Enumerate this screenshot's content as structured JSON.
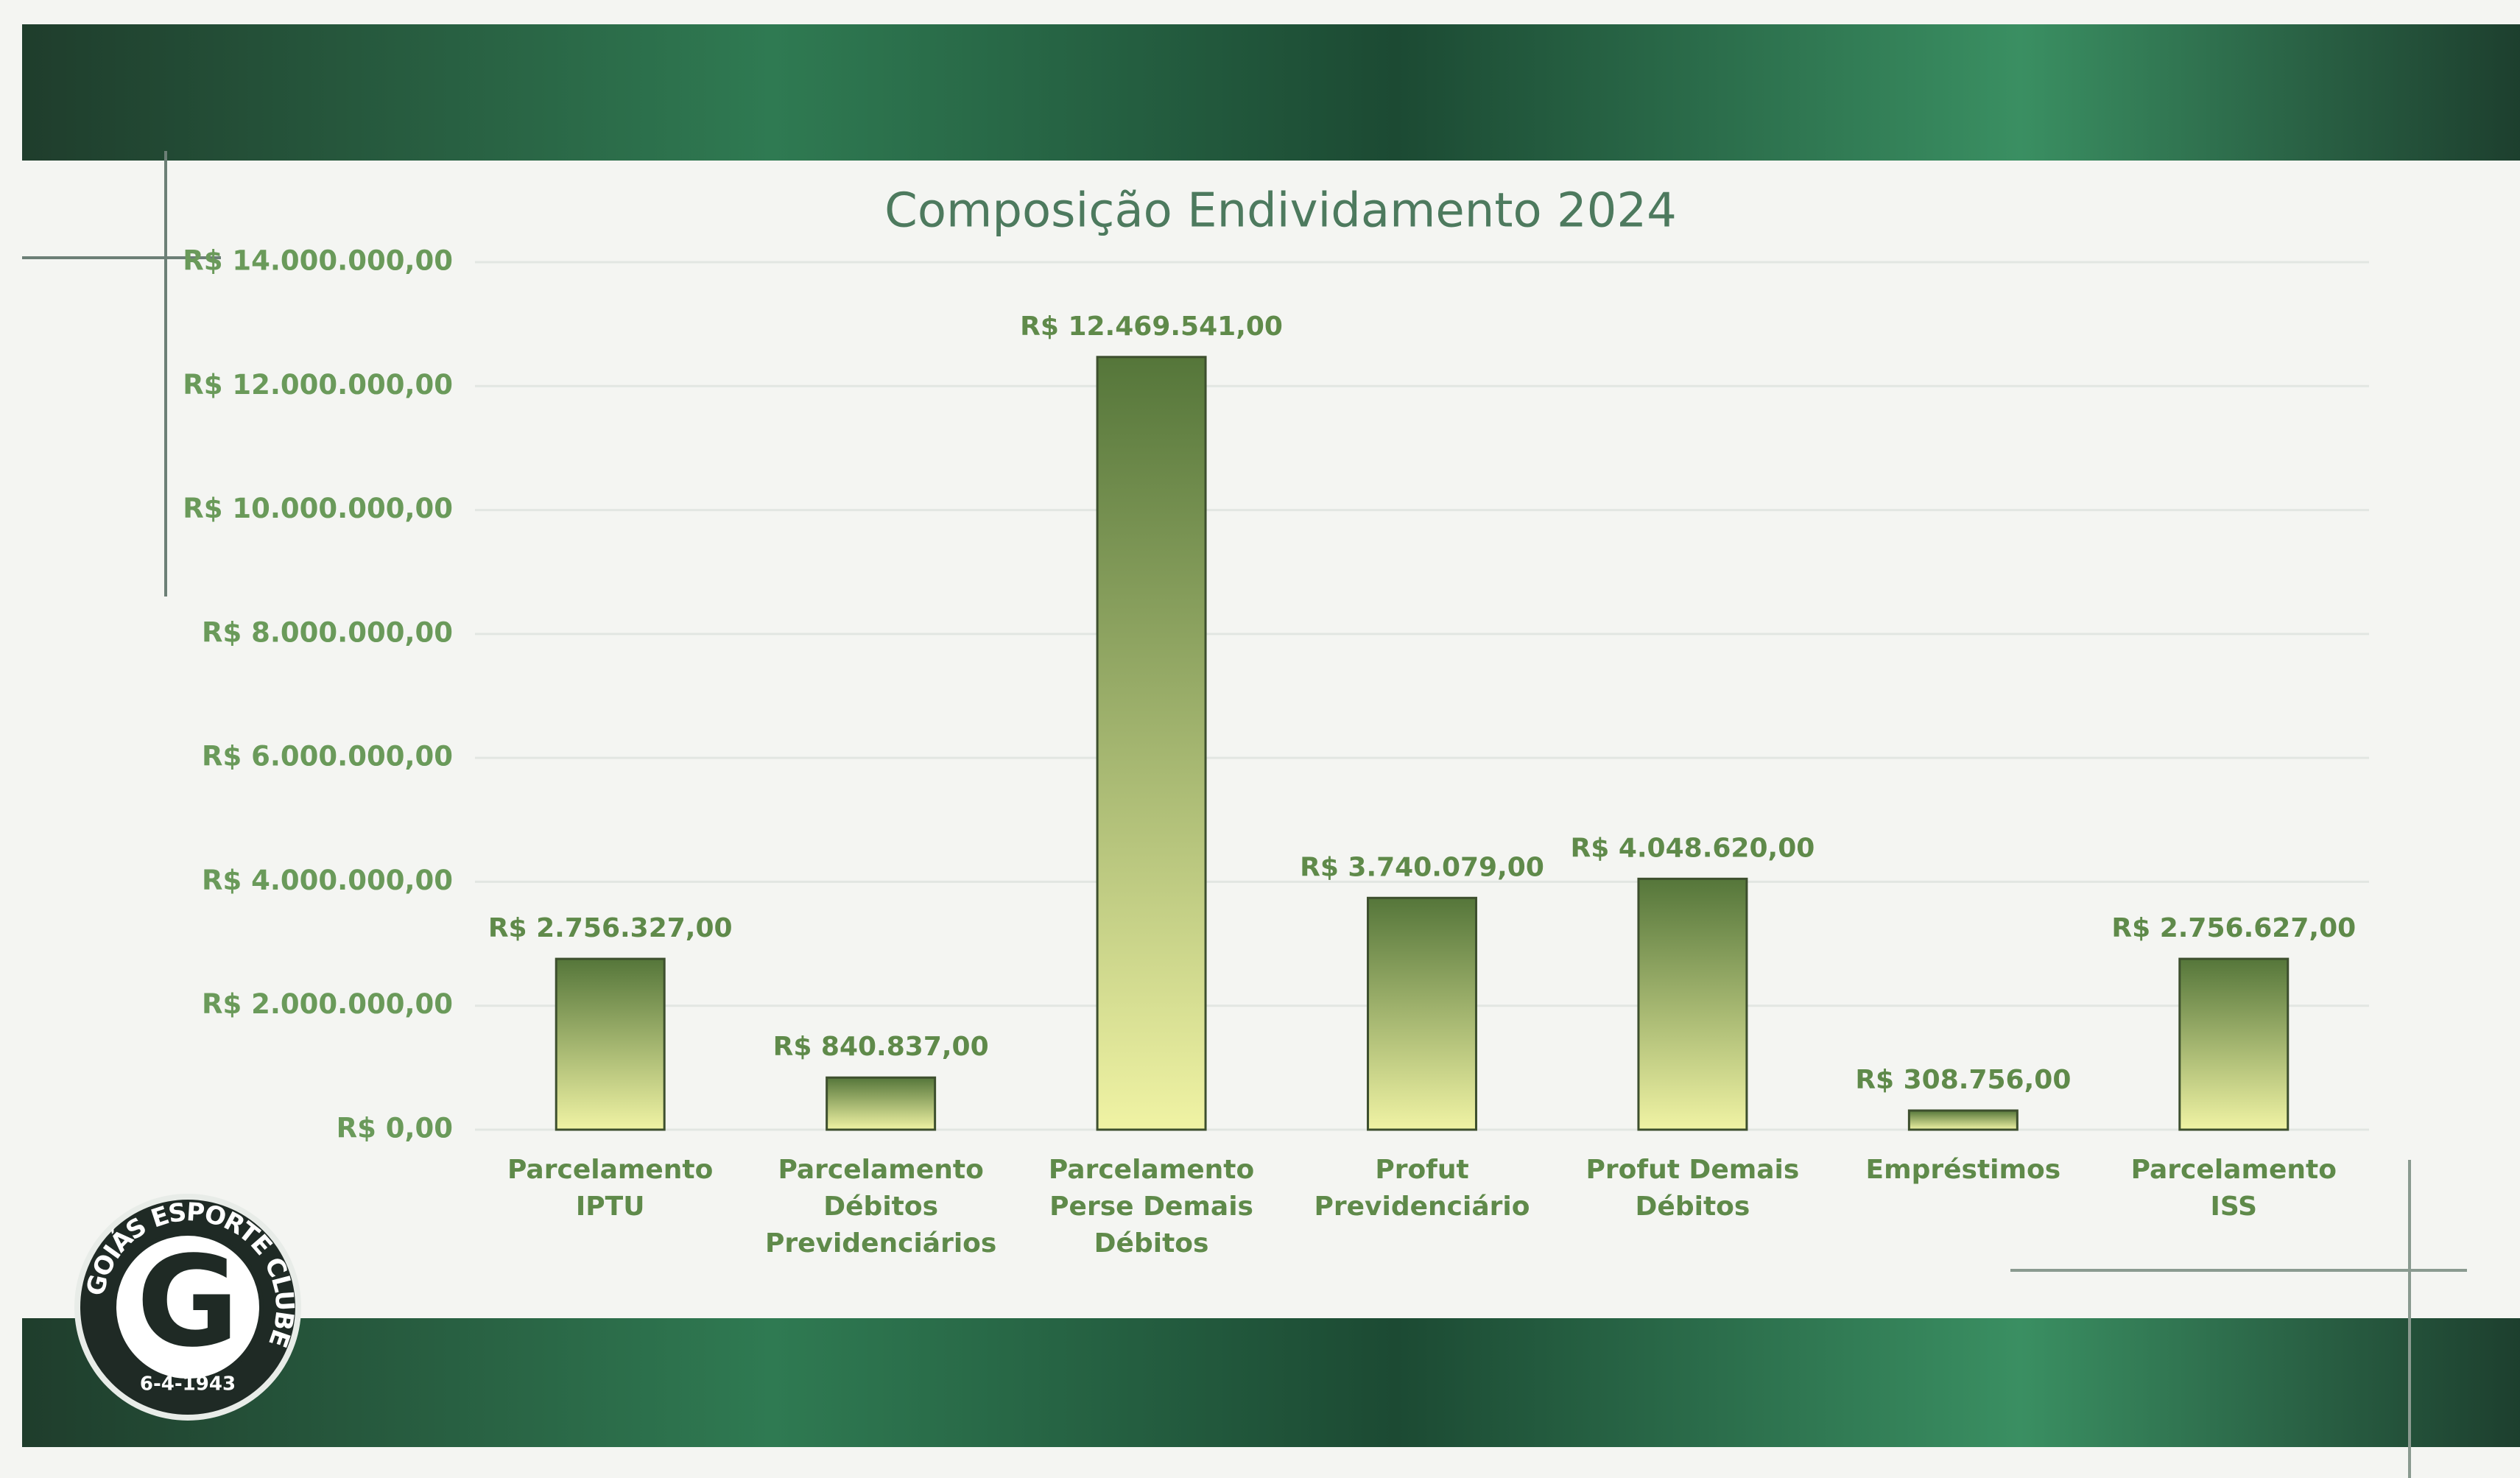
{
  "chart_data": {
    "type": "bar",
    "title": "Composição Endividamento 2024",
    "categories": [
      "Parcelamento IPTU",
      "Parcelamento Débitos Previdenciários",
      "Parcelamento Perse Demais Débitos",
      "Profut Previdenciário",
      "Profut Demais Débitos",
      "Empréstimos",
      "Parcelamento ISS"
    ],
    "values": [
      2756327,
      840837,
      12469541,
      3740079,
      4048620,
      308756,
      2756627
    ],
    "value_labels": [
      "R$ 2.756.327,00",
      "R$ 840.837,00",
      "R$ 12.469.541,00",
      "R$ 3.740.079,00",
      "R$ 4.048.620,00",
      "R$ 308.756,00",
      "R$ 2.756.627,00"
    ],
    "gradient": [
      "#55763a",
      "#f0f3a4"
    ],
    "ylim": [
      0,
      14000000
    ],
    "yticks": [
      {
        "value": 0,
        "label": "R$ 0,00"
      },
      {
        "value": 2000000,
        "label": "R$ 2.000.000,00"
      },
      {
        "value": 4000000,
        "label": "R$ 4.000.000,00"
      },
      {
        "value": 6000000,
        "label": "R$ 6.000.000,00"
      },
      {
        "value": 8000000,
        "label": "R$ 8.000.000,00"
      },
      {
        "value": 10000000,
        "label": "R$ 10.000.000,00"
      },
      {
        "value": 12000000,
        "label": "R$ 12.000.000,00"
      },
      {
        "value": 14000000,
        "label": "R$ 14.000.000,00"
      }
    ],
    "grid": true
  },
  "logo": {
    "name": "GOIÁS ESPORTE CLUBE",
    "date": "6-4-1943",
    "letter": "G"
  }
}
